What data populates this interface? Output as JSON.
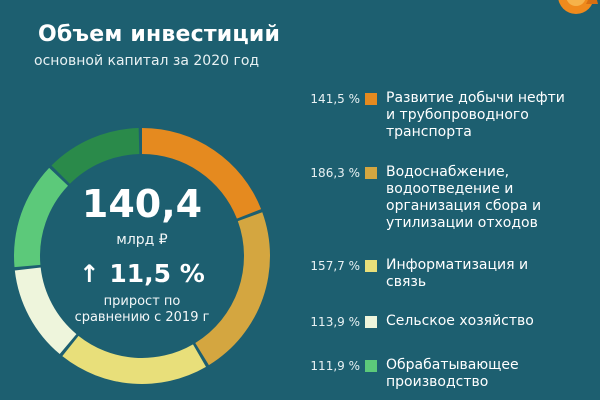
{
  "header": {
    "title": "Объем инвестиций",
    "subtitle": "основной капитал за 2020 год"
  },
  "center": {
    "total": "140,4",
    "unit": "млрд ₽",
    "growth_arrow": "↑",
    "growth": "11,5 %",
    "growth_note_line1": "прирост по",
    "growth_note_line2": "сравнению с 2019 г"
  },
  "chart_data": {
    "type": "pie",
    "title": "Объем инвестиций",
    "subtitle": "основной капитал за 2020 год",
    "categories": [
      "Развитие добычи нефти и трубопроводного транспорта",
      "Водоснабжение, водоотведение и организация сбора и утилизации отходов",
      "Информатизация и связь",
      "Сельское хозяйство",
      "Обрабатывающее производство"
    ],
    "values": [
      "141,5 %",
      "186,3 %",
      "157,7 %",
      "113,9 %",
      "111,9 %"
    ],
    "colors": [
      "#e58a1f",
      "#d4a640",
      "#e8df7a",
      "#eef5dc",
      "#5cc97a"
    ],
    "extra_segment_color": "#2a8a4a",
    "legend_placement": "right"
  },
  "legend": [
    {
      "pct": "141,5 %",
      "line1": "Развитие добычи нефти",
      "line2": "и трубопроводного",
      "line3": "транспорта",
      "line4": ""
    },
    {
      "pct": "186,3 %",
      "line1": "Водоснабжение,",
      "line2": "водоотведение и",
      "line3": "организация сбора и",
      "line4": "утилизации отходов"
    },
    {
      "pct": "157,7 %",
      "line1": "Информатизация и",
      "line2": "связь",
      "line3": "",
      "line4": ""
    },
    {
      "pct": "113,9 %",
      "line1": "Сельское хозяйство",
      "line2": "",
      "line3": "",
      "line4": ""
    },
    {
      "pct": "111,9 %",
      "line1": "Обрабатывающее",
      "line2": "производство",
      "line3": "",
      "line4": ""
    }
  ]
}
